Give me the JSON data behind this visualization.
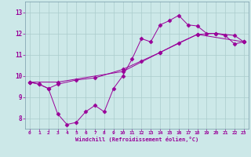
{
  "xlabel": "Windchill (Refroidissement éolien,°C)",
  "background_color": "#cce8e8",
  "line_color": "#990099",
  "grid_color": "#aacccc",
  "spine_color": "#7799aa",
  "xlim": [
    -0.5,
    23.5
  ],
  "ylim": [
    7.5,
    13.5
  ],
  "xticks": [
    0,
    1,
    2,
    3,
    4,
    5,
    6,
    7,
    8,
    9,
    10,
    11,
    12,
    13,
    14,
    15,
    16,
    17,
    18,
    19,
    20,
    21,
    22,
    23
  ],
  "yticks": [
    8,
    9,
    10,
    11,
    12,
    13
  ],
  "series": {
    "line1": {
      "x": [
        0,
        1,
        2,
        3,
        4,
        5,
        6,
        7,
        8,
        9,
        10,
        11,
        12,
        13,
        14,
        15,
        16,
        17,
        18,
        19,
        20,
        21,
        22,
        23
      ],
      "y": [
        9.7,
        9.6,
        9.4,
        8.2,
        7.7,
        7.8,
        8.3,
        8.6,
        8.3,
        9.4,
        10.0,
        10.8,
        11.75,
        11.6,
        12.4,
        12.6,
        12.85,
        12.4,
        12.35,
        12.0,
        12.0,
        11.9,
        11.5,
        11.6
      ]
    },
    "line2": {
      "x": [
        0,
        1,
        2,
        3,
        5,
        7,
        10,
        12,
        14,
        16,
        18,
        20,
        22,
        23
      ],
      "y": [
        9.7,
        9.6,
        9.4,
        9.6,
        9.8,
        9.9,
        10.3,
        10.7,
        11.1,
        11.55,
        11.95,
        12.0,
        11.9,
        11.6
      ]
    },
    "line3": {
      "x": [
        0,
        3,
        10,
        14,
        18,
        23
      ],
      "y": [
        9.7,
        9.7,
        10.2,
        11.1,
        11.95,
        11.6
      ]
    }
  }
}
